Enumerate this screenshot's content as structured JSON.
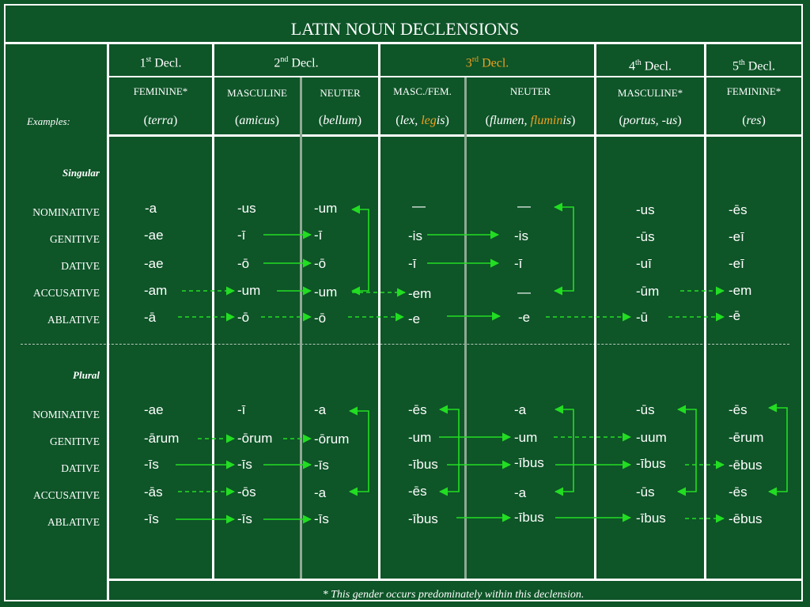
{
  "title": "LATIN NOUN DECLENSIONS",
  "columns": [
    {
      "num": "1",
      "sup": "st",
      "label": "Decl."
    },
    {
      "num": "2",
      "sup": "nd",
      "label": "Decl."
    },
    {
      "num": "3",
      "sup": "rd",
      "label": "Decl."
    },
    {
      "num": "4",
      "sup": "th",
      "label": "Decl."
    },
    {
      "num": "5",
      "sup": "th",
      "label": "Decl."
    }
  ],
  "genders": [
    "FEMININE*",
    "MASCULINE",
    "NEUTER",
    "MASC./FEM.",
    "NEUTER",
    "MASCULINE*",
    "FEMININE*"
  ],
  "examples_label": "Examples:",
  "examples": {
    "terra": "terra",
    "amicus": "amicus",
    "bellum": "bellum",
    "lex": "lex, ",
    "legis_stem": "leg",
    "legis_end": "is",
    "flumen": "flumen, ",
    "fluminis_stem": "flumin",
    "fluminis_end": "is",
    "portus": "portus, -us",
    "res": "res"
  },
  "sections": {
    "singular": "Singular",
    "plural": "Plural"
  },
  "cases": [
    "NOMINATIVE",
    "GENITIVE",
    "DATIVE",
    "ACCUSATIVE",
    "ABLATIVE"
  ],
  "singular": {
    "d1": [
      "-a",
      "-ae",
      "-ae",
      "-am",
      "-ā"
    ],
    "d2m": [
      "-us",
      "-ī",
      "-ō",
      "-um",
      "-ō"
    ],
    "d2n": [
      "-um",
      "-ī",
      "-ō",
      "-um",
      "-ō"
    ],
    "d3mf": [
      "—",
      "-is",
      "-ī",
      "-em",
      "-e"
    ],
    "d3n": [
      "—",
      "-is",
      "-ī",
      "—",
      "-e"
    ],
    "d4": [
      "-us",
      "-ūs",
      "-uī",
      "-ūm",
      "-ū"
    ],
    "d5": [
      "-ēs",
      "-eī",
      "-eī",
      "-em",
      "-ē"
    ]
  },
  "plural": {
    "d1": [
      "-ae",
      "-ārum",
      "-īs",
      "-ās",
      "-īs"
    ],
    "d2m": [
      "-ī",
      "-ōrum",
      "-īs",
      "-ōs",
      "-īs"
    ],
    "d2n": [
      "-a",
      "-ōrum",
      "-īs",
      "-a",
      "-īs"
    ],
    "d3mf": [
      "-ēs",
      "-um",
      "-ībus",
      "-ēs",
      "-ībus"
    ],
    "d3n": [
      "-a",
      "-um",
      "-ībus",
      "-a",
      "-ībus"
    ],
    "d4": [
      "-ūs",
      "-uum",
      "-ībus",
      "-ūs",
      "-ībus"
    ],
    "d5": [
      "-ēs",
      "-ērum",
      "-ēbus",
      "-ēs",
      "-ēbus"
    ]
  },
  "footnote": "* This gender occurs predominately within this declension.",
  "colors": {
    "background": "#0e5528",
    "arrow": "#22dd22",
    "highlight": "#f0a020",
    "lines": "#ffffff"
  }
}
